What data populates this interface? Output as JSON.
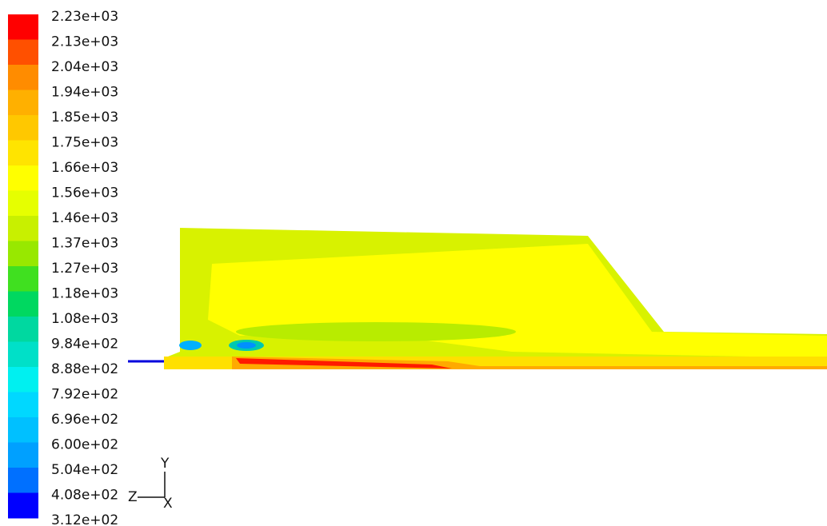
{
  "colorbar": {
    "labels": [
      "2.23e+03",
      "2.13e+03",
      "2.04e+03",
      "1.94e+03",
      "1.85e+03",
      "1.75e+03",
      "1.66e+03",
      "1.56e+03",
      "1.46e+03",
      "1.37e+03",
      "1.27e+03",
      "1.18e+03",
      "1.08e+03",
      "9.84e+02",
      "8.88e+02",
      "7.92e+02",
      "6.96e+02",
      "6.00e+02",
      "5.04e+02",
      "4.08e+02",
      "3.12e+02"
    ]
  },
  "axes": {
    "y": "Y",
    "z": "Z",
    "x": "X"
  }
}
